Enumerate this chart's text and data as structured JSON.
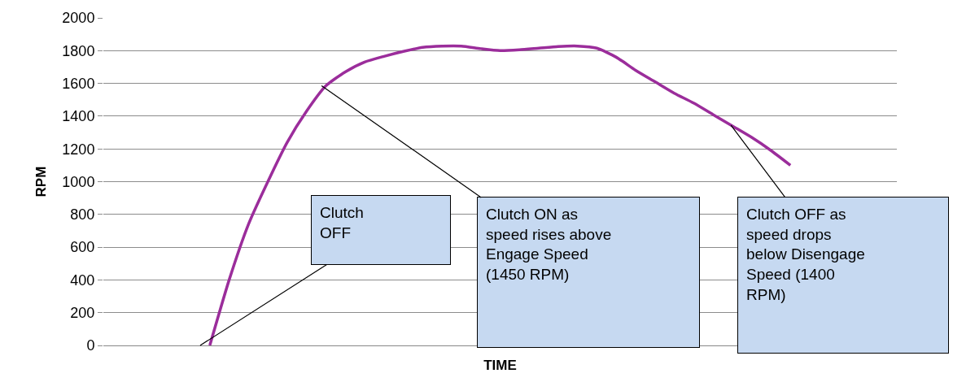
{
  "chart_data": {
    "type": "line",
    "xlabel": "TIME",
    "ylabel": "RPM",
    "categories": [
      null,
      null,
      null,
      null,
      null,
      null,
      null,
      null,
      null,
      null,
      null,
      null,
      null,
      null,
      null,
      null,
      null,
      null,
      null,
      null,
      null,
      null,
      null,
      null,
      null,
      null,
      null,
      null,
      null,
      null,
      null,
      null,
      null,
      null,
      null,
      null,
      null,
      null,
      null,
      null,
      null
    ],
    "series": [
      {
        "color": "#9b2d9b",
        "values": [
          null,
          null,
          null,
          null,
          null,
          0,
          400,
          740,
          1000,
          1240,
          1430,
          1585,
          1670,
          1730,
          1765,
          1795,
          1820,
          1828,
          1828,
          1812,
          1800,
          1805,
          1815,
          1825,
          1828,
          1815,
          1760,
          1680,
          1610,
          1540,
          1480,
          1410,
          1340,
          1270,
          1190,
          1100,
          null,
          null,
          null,
          null,
          null
        ]
      }
    ],
    "ylim": [
      0,
      2000
    ],
    "yticks": [
      0,
      200,
      400,
      600,
      800,
      1000,
      1200,
      1400,
      1600,
      1800,
      2000
    ],
    "grid": "y",
    "marker": "none",
    "line_style": "solid",
    "annotations": [
      "Clutch\nOFF",
      "Clutch ON as\nspeed rises above\nEngage Speed\n(1450 RPM)",
      "Clutch OFF as\nspeed drops\nbelow Disengage\nSpeed (1400\nRPM)"
    ]
  }
}
